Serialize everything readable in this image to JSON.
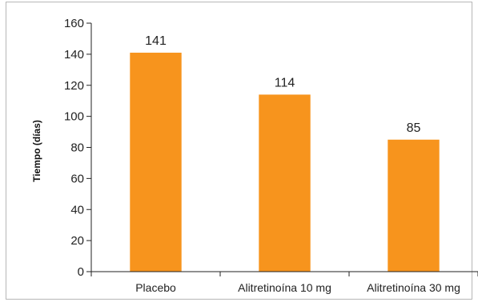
{
  "chart_data": {
    "type": "bar",
    "title": "",
    "xlabel": "",
    "ylabel": "Tiempo (días)",
    "categories": [
      "Placebo",
      "Alitretinoína 10 mg",
      "Alitretinoína 30 mg"
    ],
    "values": [
      141,
      114,
      85
    ],
    "data_labels": [
      "141",
      "114",
      "85"
    ],
    "ylim": [
      0,
      160
    ],
    "yticks": [
      0,
      20,
      40,
      60,
      80,
      100,
      120,
      140,
      160
    ],
    "ytick_labels": [
      "0",
      "20",
      "40",
      "60",
      "80",
      "100",
      "120",
      "140",
      "160"
    ],
    "grid": false,
    "legend": "none",
    "bar_color": "#F7941D",
    "frame_color": "#B7B7B7"
  }
}
